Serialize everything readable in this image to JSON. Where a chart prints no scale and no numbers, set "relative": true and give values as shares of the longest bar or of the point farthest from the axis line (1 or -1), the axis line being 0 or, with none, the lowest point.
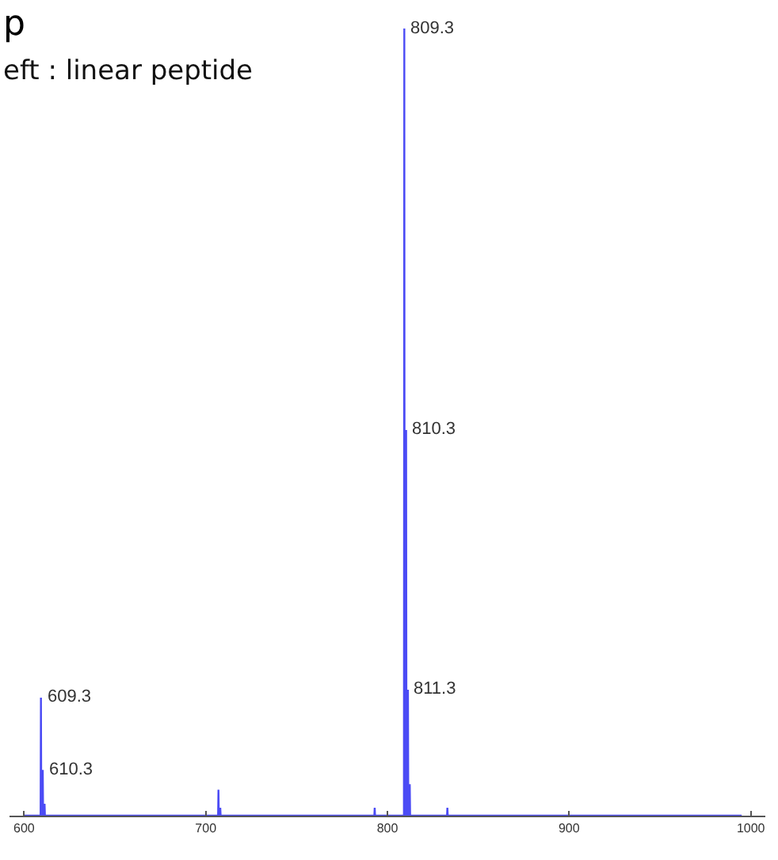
{
  "chart_data": {
    "type": "line",
    "title": "p",
    "subtitle": "eft : linear peptide",
    "relative": true,
    "grid": false,
    "marker": "none",
    "line_style": "solid",
    "tick_labels": "x",
    "xlim": [
      592,
      1008
    ],
    "xticks": [
      600,
      700,
      800,
      900,
      1000
    ],
    "series": [
      {
        "color": "#4b4bf5",
        "x": [
          600,
          609.1,
          609.3,
          609.5,
          610.1,
          610.3,
          610.5,
          611.1,
          611.3,
          611.5,
          706.8,
          707.0,
          707.2,
          707.8,
          708.0,
          708.2,
          792.8,
          793.0,
          793.2,
          809.1,
          809.3,
          809.5,
          810.1,
          810.3,
          810.5,
          811.1,
          811.3,
          811.5,
          812.1,
          812.3,
          812.5,
          832.8,
          833.0,
          833.2,
          995
        ],
        "values": [
          0,
          0,
          0.15,
          0,
          0,
          0.058,
          0,
          0,
          0.015,
          0,
          0,
          0.033,
          0,
          0,
          0.01,
          0,
          0,
          0.01,
          0,
          0,
          1,
          0,
          0,
          0.49,
          0,
          0,
          0.16,
          0,
          0,
          0.04,
          0,
          0,
          0.01,
          0,
          0
        ]
      }
    ],
    "annotations": [
      {
        "text": "609.3",
        "x": 609.3,
        "y": 0.15
      },
      {
        "text": "610.3",
        "x": 610.3,
        "y": 0.058
      },
      {
        "text": "809.3",
        "x": 809.3,
        "y": 1
      },
      {
        "text": "810.3",
        "x": 810.3,
        "y": 0.49
      },
      {
        "text": "811.3",
        "x": 811.3,
        "y": 0.16
      }
    ]
  }
}
